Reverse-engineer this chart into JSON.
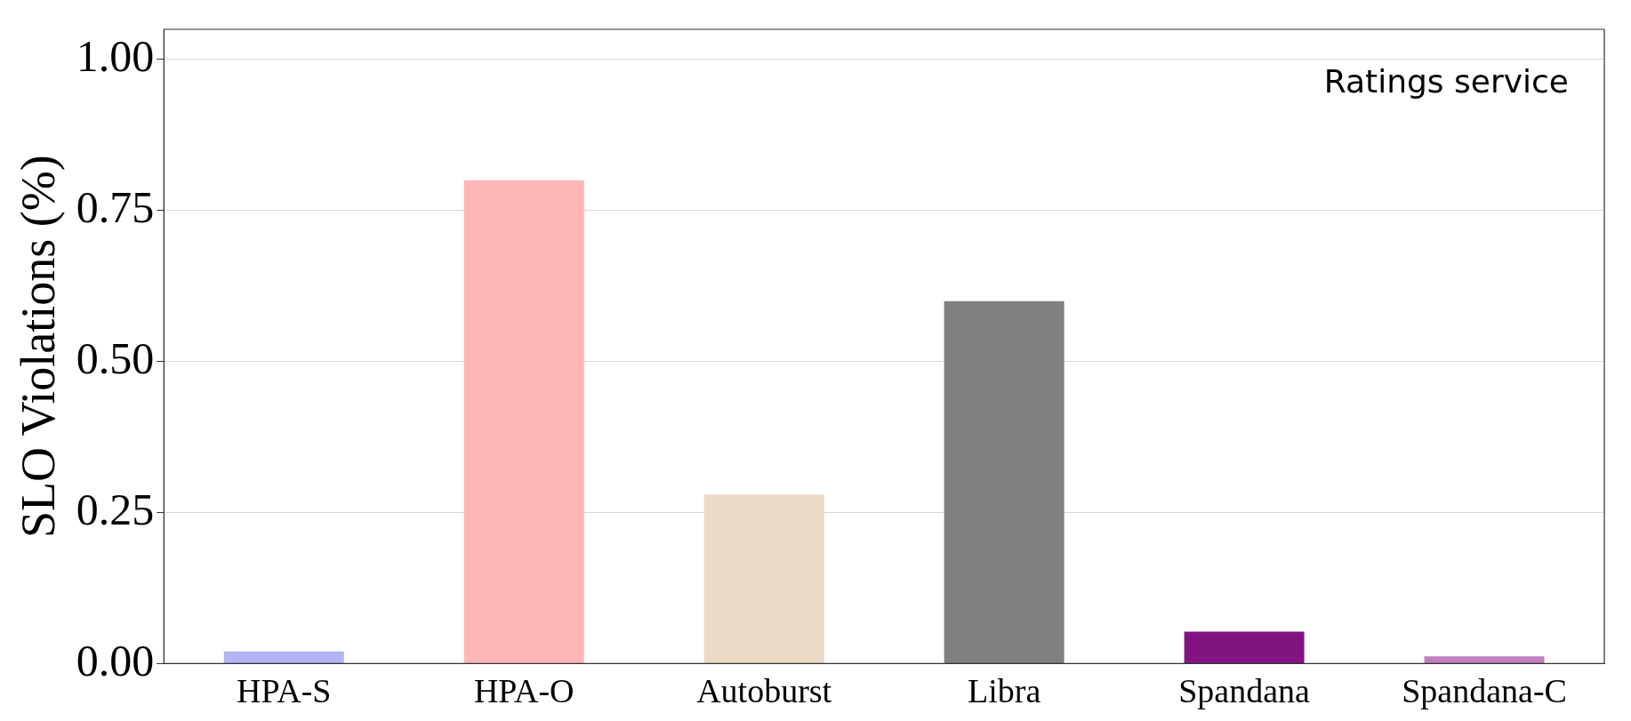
{
  "chart_data": {
    "type": "bar",
    "categories": [
      "HPA-S",
      "HPA-O",
      "Autoburst",
      "Libra",
      "Spandana",
      "Spandana-C"
    ],
    "values": [
      0.02,
      0.8,
      0.28,
      0.6,
      0.053,
      0.012
    ],
    "colors": [
      "#b3b3f5",
      "#ffb6b6",
      "#ecdac6",
      "#808080",
      "#821482",
      "#c080c0"
    ],
    "ylabel": "SLO Violations (%)",
    "ylim": [
      0,
      1.05
    ],
    "yticks": [
      {
        "value": 0,
        "label": "0.00"
      },
      {
        "value": 0.25,
        "label": "0.25"
      },
      {
        "value": 0.5,
        "label": "0.50"
      },
      {
        "value": 0.75,
        "label": "0.75"
      },
      {
        "value": 1,
        "label": "1.00"
      }
    ],
    "grid": "y",
    "legend": false,
    "annotations": [
      "Ratings service"
    ]
  }
}
